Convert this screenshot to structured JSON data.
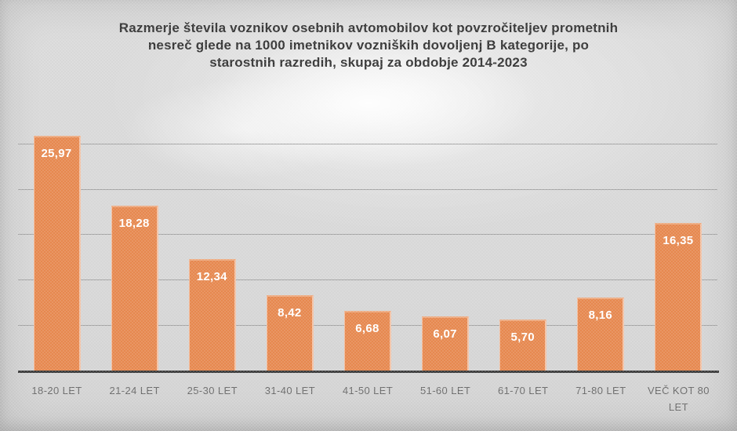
{
  "title": {
    "lines": [
      "Razmerje števila voznikov osebnih avtomobilov kot povzročiteljev prometnih",
      "nesreč glede na 1000 imetnikov vozniških dovoljenj B kategorije, po",
      "starostnih razredih, skupaj za obdobje 2014-2023"
    ]
  },
  "chart_data": {
    "type": "bar",
    "title": "Razmerje števila voznikov osebnih avtomobilov kot povzročiteljev prometnih nesreč glede na 1000 imetnikov vozniških dovoljenj B kategorije, po starostnih razredih, skupaj za obdobje 2014-2023",
    "categories": [
      "18-20 LET",
      "21-24 LET",
      "25-30 LET",
      "31-40 LET",
      "41-50 LET",
      "51-60 LET",
      "61-70 LET",
      "71-80 LET",
      "VEČ KOT 80 LET"
    ],
    "values": [
      25.97,
      18.28,
      12.34,
      8.42,
      6.68,
      6.07,
      5.7,
      8.16,
      16.35
    ],
    "value_labels": [
      "25,97",
      "18,28",
      "12,34",
      "8,42",
      "6,68",
      "6,07",
      "5,70",
      "8,16",
      "16,35"
    ],
    "xlabel": "",
    "ylabel": "",
    "ylim": [
      0,
      28.7
    ],
    "gridline_values": [
      5,
      10,
      15,
      20,
      25
    ],
    "grid": "horizontal",
    "legend": "none",
    "data_labels": "inside-top",
    "colors": {
      "bar": "#e6854a",
      "bar_label": "#ffffff",
      "gridline": "#9a9a9a",
      "axis_line": "#3a3a3a",
      "tick_label": "#696969",
      "title_text": "#333333",
      "background": "#d8d8d8"
    }
  }
}
